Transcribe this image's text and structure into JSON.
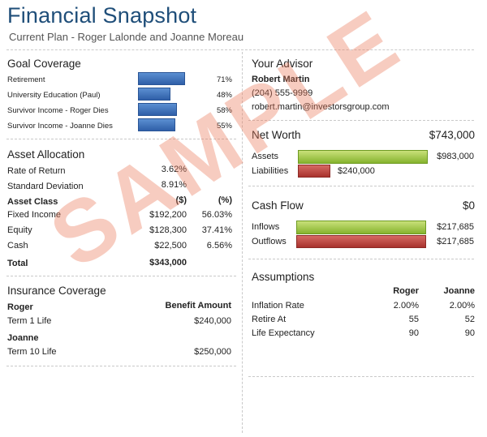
{
  "title": "Financial Snapshot",
  "subtitle": "Current Plan - Roger Lalonde and Joanne Moreau",
  "goal_coverage": {
    "heading": "Goal Coverage",
    "items": [
      {
        "label": "Retirement",
        "percent": "71%",
        "value": 71
      },
      {
        "label": "University Education (Paul)",
        "percent": "48%",
        "value": 48
      },
      {
        "label": "Survivor Income - Roger Dies",
        "percent": "58%",
        "value": 58
      },
      {
        "label": "Survivor Income - Joanne Dies",
        "percent": "55%",
        "value": 55
      }
    ]
  },
  "asset_allocation": {
    "heading": "Asset Allocation",
    "rate_of_return_label": "Rate of Return",
    "rate_of_return": "3.62%",
    "std_dev_label": "Standard Deviation",
    "std_dev": "8.91%",
    "col_class": "Asset Class",
    "col_dollars": "($)",
    "col_pct": "(%)",
    "rows": [
      {
        "name": "Fixed Income",
        "amount": "$192,200",
        "pct": "56.03%"
      },
      {
        "name": "Equity",
        "amount": "$128,300",
        "pct": "37.41%"
      },
      {
        "name": "Cash",
        "amount": "$22,500",
        "pct": "6.56%"
      }
    ],
    "total_label": "Total",
    "total": "$343,000"
  },
  "insurance": {
    "heading": "Insurance Coverage",
    "col_benefit": "Benefit Amount",
    "people": [
      {
        "name": "Roger",
        "policy": "Term 1 Life",
        "amount": "$240,000"
      },
      {
        "name": "Joanne",
        "policy": "Term 10 Life",
        "amount": "$250,000"
      }
    ]
  },
  "advisor": {
    "heading": "Your Advisor",
    "name": "Robert Martin",
    "phone": "(204) 555-9999",
    "email": "robert.martin@investorsgroup.com"
  },
  "net_worth": {
    "heading": "Net Worth",
    "total": "$743,000",
    "assets_label": "Assets",
    "assets": "$983,000",
    "assets_value": 983000,
    "liabilities_label": "Liabilities",
    "liabilities": "$240,000",
    "liabilities_value": 240000
  },
  "cash_flow": {
    "heading": "Cash Flow",
    "total": "$0",
    "inflows_label": "Inflows",
    "inflows": "$217,685",
    "outflows_label": "Outflows",
    "outflows": "$217,685"
  },
  "assumptions": {
    "heading": "Assumptions",
    "col_roger": "Roger",
    "col_joanne": "Joanne",
    "rows": [
      {
        "label": "Inflation Rate",
        "roger": "2.00%",
        "joanne": "2.00%"
      },
      {
        "label": "Retire At",
        "roger": "55",
        "joanne": "52"
      },
      {
        "label": "Life Expectancy",
        "roger": "90",
        "joanne": "90"
      }
    ]
  },
  "watermark": "SAMPLE"
}
